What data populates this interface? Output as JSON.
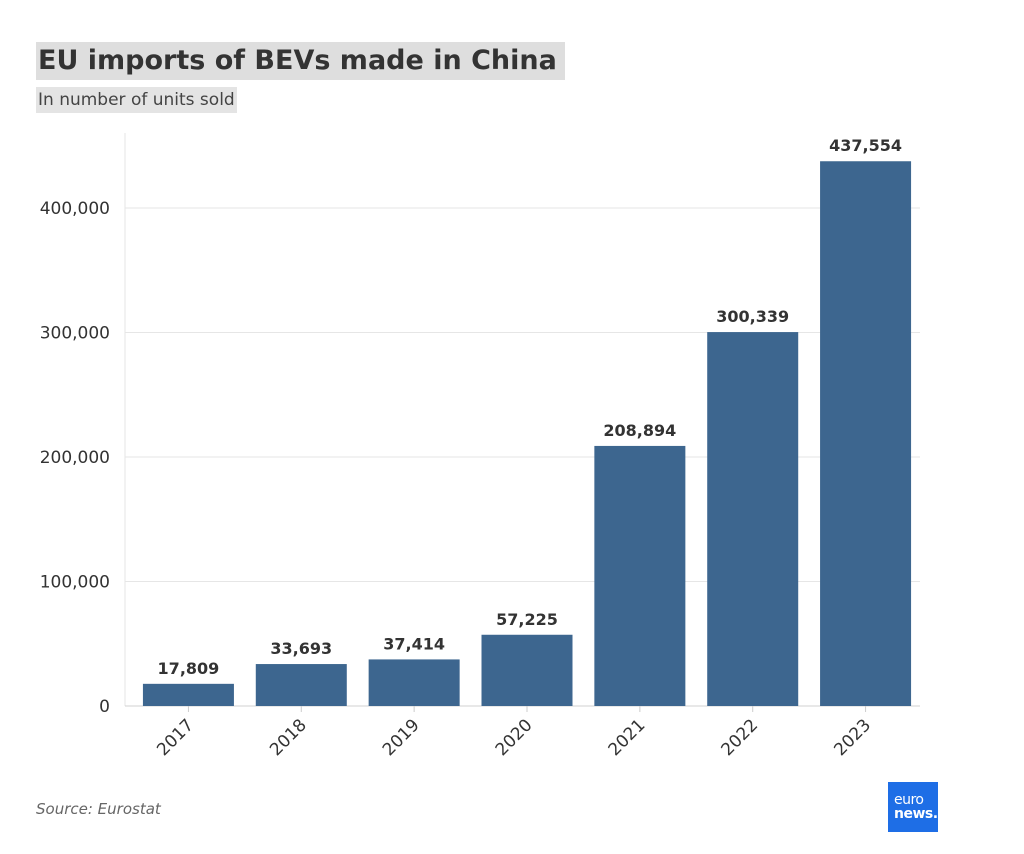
{
  "header": {
    "title": "EU imports of BEVs made in China",
    "subtitle": "In number of units sold"
  },
  "footer": {
    "source": "Source: Eurostat",
    "logo_line1": "euro",
    "logo_line2": "news."
  },
  "colors": {
    "bar": "#3d668f",
    "grid": "#e6e6e6",
    "logo": "#1e6ee6"
  },
  "chart_data": {
    "type": "bar",
    "categories": [
      "2017",
      "2018",
      "2019",
      "2020",
      "2021",
      "2022",
      "2023"
    ],
    "values": [
      17809,
      33693,
      37414,
      57225,
      208894,
      300339,
      437554
    ],
    "value_labels": [
      "17,809",
      "33,693",
      "37,414",
      "57,225",
      "208,894",
      "300,339",
      "437,554"
    ],
    "title": "EU imports of BEVs made in China",
    "subtitle": "In number of units sold",
    "xlabel": "",
    "ylabel": "",
    "ylim": [
      0,
      460000
    ],
    "yticks": [
      0,
      100000,
      200000,
      300000,
      400000
    ],
    "ytick_labels": [
      "0",
      "100,000",
      "200,000",
      "300,000",
      "400,000"
    ],
    "grid": true,
    "x_tick_rotation": -45
  }
}
